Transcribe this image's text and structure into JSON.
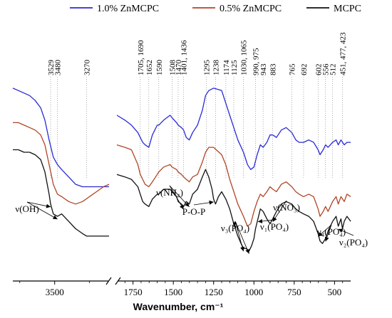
{
  "chart_data": {
    "type": "line",
    "title": "",
    "xlabel": "Wavenumber, cm⁻¹",
    "ylabel": "",
    "x_axis_reversed": true,
    "broken_x_axis": true,
    "segments": [
      {
        "name": "left",
        "xlim": [
          3800,
          3100
        ],
        "ticks": [
          3500
        ]
      },
      {
        "name": "right",
        "xlim": [
          1850,
          400
        ],
        "ticks": [
          1750,
          1500,
          1250,
          1000,
          750,
          500
        ]
      }
    ],
    "legend": {
      "placement": "top",
      "entries": [
        {
          "name": "1.0% ZnMCPC",
          "color": "#2a2ad6"
        },
        {
          "name": "0.5% ZnMCPC",
          "color": "#b04526"
        },
        {
          "name": "MCPC",
          "color": "#111111"
        }
      ]
    },
    "series": [
      {
        "name": "1.0% ZnMCPC",
        "color": "#2a2ad6",
        "points": [
          [
            3800,
            71
          ],
          [
            3760,
            70
          ],
          [
            3720,
            69
          ],
          [
            3680,
            68
          ],
          [
            3640,
            66
          ],
          [
            3600,
            63
          ],
          [
            3570,
            58
          ],
          [
            3540,
            50
          ],
          [
            3510,
            43
          ],
          [
            3480,
            40
          ],
          [
            3450,
            38
          ],
          [
            3400,
            35
          ],
          [
            3350,
            32
          ],
          [
            3300,
            31
          ],
          [
            3250,
            31
          ],
          [
            3200,
            31
          ],
          [
            3150,
            31
          ],
          [
            3110,
            31
          ],
          [
            1850,
            60
          ],
          [
            1800,
            58
          ],
          [
            1760,
            56
          ],
          [
            1720,
            53
          ],
          [
            1705,
            51
          ],
          [
            1690,
            49
          ],
          [
            1675,
            48
          ],
          [
            1652,
            47
          ],
          [
            1630,
            52
          ],
          [
            1600,
            56
          ],
          [
            1590,
            56
          ],
          [
            1560,
            58
          ],
          [
            1520,
            60
          ],
          [
            1508,
            59
          ],
          [
            1480,
            57
          ],
          [
            1470,
            56
          ],
          [
            1450,
            55
          ],
          [
            1436,
            54
          ],
          [
            1420,
            51
          ],
          [
            1401,
            50
          ],
          [
            1380,
            53
          ],
          [
            1350,
            56
          ],
          [
            1320,
            62
          ],
          [
            1300,
            68
          ],
          [
            1280,
            70
          ],
          [
            1250,
            71
          ],
          [
            1200,
            70
          ],
          [
            1175,
            65
          ],
          [
            1150,
            60
          ],
          [
            1130,
            56
          ],
          [
            1100,
            50
          ],
          [
            1065,
            45
          ],
          [
            1040,
            40
          ],
          [
            1020,
            38
          ],
          [
            1000,
            39
          ],
          [
            980,
            44
          ],
          [
            960,
            48
          ],
          [
            943,
            47
          ],
          [
            920,
            49
          ],
          [
            900,
            52
          ],
          [
            883,
            52
          ],
          [
            860,
            51
          ],
          [
            830,
            54
          ],
          [
            800,
            55
          ],
          [
            765,
            53
          ],
          [
            740,
            50
          ],
          [
            720,
            49
          ],
          [
            692,
            49
          ],
          [
            660,
            50
          ],
          [
            630,
            49
          ],
          [
            602,
            46
          ],
          [
            590,
            44
          ],
          [
            570,
            46
          ],
          [
            556,
            48
          ],
          [
            540,
            47
          ],
          [
            512,
            49
          ],
          [
            490,
            50
          ],
          [
            477,
            48
          ],
          [
            460,
            50
          ],
          [
            440,
            48
          ],
          [
            423,
            49
          ],
          [
            400,
            49
          ]
        ]
      },
      {
        "name": "0.5% ZnMCPC",
        "color": "#b04526",
        "points": [
          [
            3800,
            57
          ],
          [
            3760,
            57
          ],
          [
            3720,
            56
          ],
          [
            3680,
            55
          ],
          [
            3640,
            54
          ],
          [
            3600,
            52
          ],
          [
            3570,
            48
          ],
          [
            3540,
            40
          ],
          [
            3510,
            32
          ],
          [
            3480,
            28
          ],
          [
            3450,
            27
          ],
          [
            3400,
            25
          ],
          [
            3350,
            24
          ],
          [
            3300,
            25
          ],
          [
            3250,
            27
          ],
          [
            3200,
            29
          ],
          [
            3150,
            31
          ],
          [
            3110,
            32
          ],
          [
            1850,
            48
          ],
          [
            1800,
            47
          ],
          [
            1760,
            46
          ],
          [
            1720,
            40
          ],
          [
            1705,
            36
          ],
          [
            1690,
            34
          ],
          [
            1675,
            32
          ],
          [
            1652,
            31
          ],
          [
            1630,
            33
          ],
          [
            1600,
            36
          ],
          [
            1590,
            37
          ],
          [
            1560,
            39
          ],
          [
            1520,
            40
          ],
          [
            1508,
            39
          ],
          [
            1480,
            38
          ],
          [
            1470,
            37
          ],
          [
            1450,
            36
          ],
          [
            1436,
            35
          ],
          [
            1420,
            34
          ],
          [
            1401,
            33
          ],
          [
            1380,
            35
          ],
          [
            1350,
            36
          ],
          [
            1320,
            41
          ],
          [
            1300,
            45
          ],
          [
            1280,
            47
          ],
          [
            1250,
            47
          ],
          [
            1200,
            44
          ],
          [
            1175,
            40
          ],
          [
            1150,
            34
          ],
          [
            1130,
            30
          ],
          [
            1100,
            24
          ],
          [
            1065,
            19
          ],
          [
            1040,
            15
          ],
          [
            1020,
            16
          ],
          [
            1000,
            21
          ],
          [
            980,
            25
          ],
          [
            960,
            28
          ],
          [
            943,
            27
          ],
          [
            920,
            29
          ],
          [
            900,
            31
          ],
          [
            883,
            30
          ],
          [
            860,
            29
          ],
          [
            830,
            32
          ],
          [
            800,
            33
          ],
          [
            765,
            31
          ],
          [
            740,
            29
          ],
          [
            720,
            28
          ],
          [
            692,
            27
          ],
          [
            660,
            28
          ],
          [
            630,
            27
          ],
          [
            602,
            22
          ],
          [
            590,
            19
          ],
          [
            570,
            21
          ],
          [
            556,
            23
          ],
          [
            540,
            21
          ],
          [
            512,
            25
          ],
          [
            490,
            27
          ],
          [
            477,
            24
          ],
          [
            460,
            27
          ],
          [
            440,
            25
          ],
          [
            423,
            28
          ],
          [
            400,
            27
          ]
        ]
      },
      {
        "name": "MCPC",
        "color": "#111111",
        "points": [
          [
            3800,
            46
          ],
          [
            3760,
            46
          ],
          [
            3720,
            45
          ],
          [
            3680,
            45
          ],
          [
            3640,
            44
          ],
          [
            3600,
            42
          ],
          [
            3570,
            37
          ],
          [
            3540,
            28
          ],
          [
            3529,
            24
          ],
          [
            3510,
            20
          ],
          [
            3480,
            19
          ],
          [
            3450,
            20
          ],
          [
            3400,
            17
          ],
          [
            3350,
            14
          ],
          [
            3300,
            12
          ],
          [
            3270,
            11
          ],
          [
            3250,
            11
          ],
          [
            3200,
            11
          ],
          [
            3150,
            11
          ],
          [
            3110,
            11
          ],
          [
            1850,
            36
          ],
          [
            1800,
            35
          ],
          [
            1760,
            34
          ],
          [
            1720,
            31
          ],
          [
            1705,
            28
          ],
          [
            1690,
            25
          ],
          [
            1675,
            24
          ],
          [
            1652,
            23
          ],
          [
            1630,
            26
          ],
          [
            1600,
            28
          ],
          [
            1590,
            28
          ],
          [
            1560,
            30
          ],
          [
            1520,
            30
          ],
          [
            1508,
            29
          ],
          [
            1480,
            27
          ],
          [
            1470,
            25
          ],
          [
            1450,
            24
          ],
          [
            1436,
            23
          ],
          [
            1420,
            25
          ],
          [
            1401,
            24
          ],
          [
            1380,
            28
          ],
          [
            1350,
            30
          ],
          [
            1320,
            35
          ],
          [
            1300,
            38
          ],
          [
            1280,
            35
          ],
          [
            1260,
            30
          ],
          [
            1250,
            26
          ],
          [
            1238,
            24
          ],
          [
            1220,
            27
          ],
          [
            1200,
            29
          ],
          [
            1174,
            26
          ],
          [
            1150,
            22
          ],
          [
            1125,
            16
          ],
          [
            1100,
            11
          ],
          [
            1080,
            8
          ],
          [
            1065,
            6
          ],
          [
            1050,
            6
          ],
          [
            1030,
            5
          ],
          [
            1015,
            7
          ],
          [
            1000,
            10
          ],
          [
            990,
            14
          ],
          [
            975,
            18
          ],
          [
            960,
            22
          ],
          [
            943,
            21
          ],
          [
            920,
            18
          ],
          [
            900,
            16
          ],
          [
            883,
            18
          ],
          [
            860,
            21
          ],
          [
            830,
            24
          ],
          [
            800,
            25
          ],
          [
            765,
            24
          ],
          [
            740,
            22
          ],
          [
            720,
            21
          ],
          [
            692,
            20
          ],
          [
            660,
            19
          ],
          [
            630,
            17
          ],
          [
            602,
            12
          ],
          [
            590,
            9
          ],
          [
            575,
            8
          ],
          [
            556,
            10
          ],
          [
            540,
            13
          ],
          [
            512,
            17
          ],
          [
            490,
            19
          ],
          [
            477,
            15
          ],
          [
            460,
            18
          ],
          [
            451,
            14
          ],
          [
            440,
            17
          ],
          [
            423,
            19
          ],
          [
            400,
            17
          ]
        ]
      }
    ],
    "peak_labels": [
      {
        "text": "3529",
        "x": 3529
      },
      {
        "text": "3480",
        "x": 3480
      },
      {
        "text": "3270",
        "x": 3270
      },
      {
        "text": "1705, 1690",
        "x": 1705
      },
      {
        "text": "1652",
        "x": 1652
      },
      {
        "text": "1590",
        "x": 1590
      },
      {
        "text": "1508",
        "x": 1508
      },
      {
        "text": "1470",
        "x": 1470
      },
      {
        "text": "1401, 1436",
        "x": 1436
      },
      {
        "text": "1295",
        "x": 1295
      },
      {
        "text": "1238",
        "x": 1238
      },
      {
        "text": "1174",
        "x": 1174
      },
      {
        "text": "1125",
        "x": 1125
      },
      {
        "text": "1030, 1065",
        "x": 1065
      },
      {
        "text": "990, 975",
        "x": 990
      },
      {
        "text": "943",
        "x": 943
      },
      {
        "text": "883",
        "x": 883
      },
      {
        "text": "765",
        "x": 765
      },
      {
        "text": "692",
        "x": 692
      },
      {
        "text": "602",
        "x": 602
      },
      {
        "text": "556",
        "x": 556
      },
      {
        "text": "512",
        "x": 512
      },
      {
        "text": "451, 477, 423",
        "x": 451
      }
    ],
    "annotations": [
      {
        "text": "ν(OH)",
        "arrows_to": [
          [
            3529,
            24
          ],
          [
            3480,
            19
          ]
        ]
      },
      {
        "text": "ν(NH₄)",
        "arrows_to": [
          [
            1436,
            23
          ],
          [
            1401,
            24
          ]
        ]
      },
      {
        "text": "P-O-P",
        "arrows_to": [
          [
            1250,
            26
          ]
        ]
      },
      {
        "text": "ν₃(PO₄)",
        "arrows_to": [
          [
            1125,
            16
          ],
          [
            1065,
            6
          ],
          [
            1030,
            5
          ]
        ]
      },
      {
        "text": "ν₁(PO₄)",
        "arrows_to": [
          [
            975,
            18
          ]
        ]
      },
      {
        "text": "ν(NO₃)",
        "arrows_to": [
          [
            883,
            18
          ]
        ]
      },
      {
        "text": "ν₄(PO₄)",
        "arrows_to": [
          [
            602,
            12
          ],
          [
            556,
            10
          ]
        ]
      },
      {
        "text": "ν₂(PO₄)",
        "arrows_to": [
          [
            477,
            15
          ]
        ]
      }
    ]
  }
}
